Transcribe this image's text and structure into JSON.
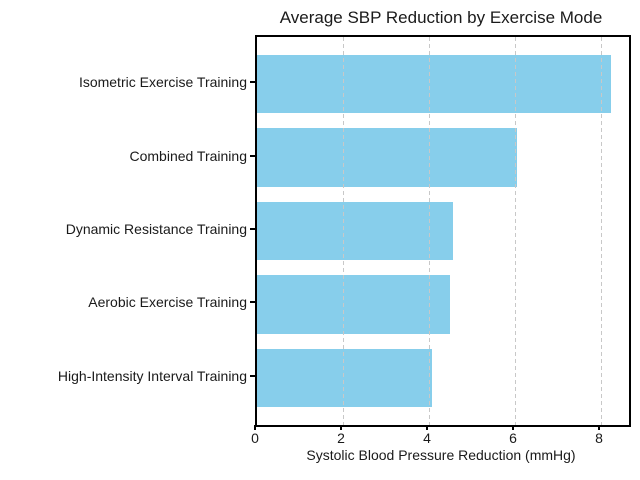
{
  "chart_data": {
    "type": "bar",
    "orientation": "horizontal",
    "title": "Average SBP Reduction by Exercise Mode",
    "xlabel": "Systolic Blood Pressure Reduction (mmHg)",
    "ylabel": "",
    "categories": [
      "Isometric Exercise Training",
      "Combined Training",
      "Dynamic Resistance Training",
      "Aerobic Exercise Training",
      "High-Intensity Interval Training"
    ],
    "values": [
      8.24,
      6.04,
      4.55,
      4.49,
      4.08
    ],
    "xticks": [
      0,
      2,
      4,
      6,
      8
    ],
    "xlim": [
      0,
      8.65
    ],
    "grid": "vertical dashed",
    "legend": "none",
    "bar_color": "#87CEEB",
    "grid_color": "#c8c8c8",
    "axis_color": "#000000",
    "text_color": "#1a1a1a"
  }
}
